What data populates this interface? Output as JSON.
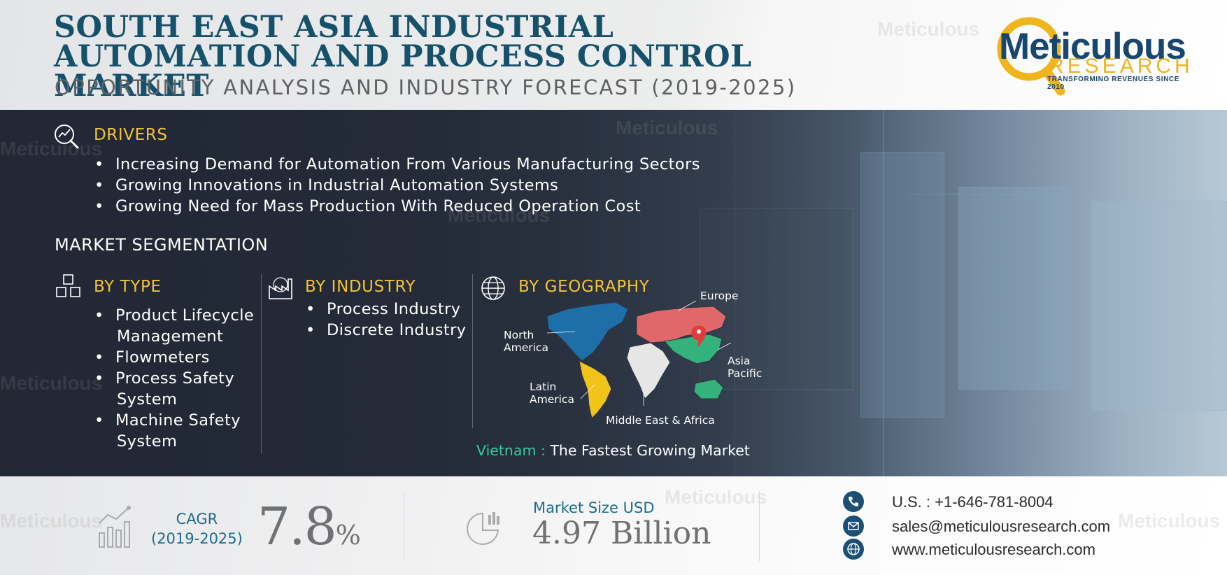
{
  "header": {
    "title": "SOUTH EAST ASIA INDUSTRIAL AUTOMATION AND PROCESS CONTROL MARKET",
    "subtitle": "OPPORTUNITY ANALYSIS AND INDUSTRY FORECAST (2019-2025)"
  },
  "logo": {
    "name": "Meticulous",
    "research": "RESEARCH",
    "tagline": "TRANSFORMING REVENUES SINCE 2010",
    "watermark": "Meticulous"
  },
  "drivers": {
    "heading": "DRIVERS",
    "icon": "magnifier-chart-icon",
    "items": [
      "Increasing Demand for Automation From Various Manufacturing Sectors",
      "Growing Innovations in Industrial Automation Systems",
      "Growing Need for Mass Production With Reduced Operation Cost"
    ]
  },
  "segmentation": {
    "title": "MARKET SEGMENTATION",
    "by_type": {
      "heading": "BY TYPE",
      "icon": "cubes-icon",
      "items": [
        [
          "Product Lifecycle",
          "Management"
        ],
        [
          "Flowmeters"
        ],
        [
          "Process Safety",
          "System"
        ],
        [
          "Machine Safety",
          "System"
        ]
      ]
    },
    "by_industry": {
      "heading": "BY INDUSTRY",
      "icon": "factory-icon",
      "items": [
        "Process Industry",
        "Discrete Industry"
      ]
    },
    "by_geography": {
      "heading": "BY GEOGRAPHY",
      "icon": "globe-icon",
      "regions": {
        "europe": "Europe",
        "north_america_1": "North",
        "north_america_2": "America",
        "asia_pacific_1": "Asia",
        "asia_pacific_2": "Pacific",
        "latin_america_1": "Latin",
        "latin_america_2": "America",
        "mea": "Middle East & Africa"
      },
      "colors": {
        "north_america": "#1e6ea8",
        "europe": "#e1686a",
        "asia_pacific": "#34b27c",
        "latin_america": "#f2c318",
        "mea": "#e6e6e6",
        "pin": "#e23b3b"
      },
      "fastest_country": "Vietnam :",
      "fastest_text": "The Fastest Growing Market"
    }
  },
  "footer": {
    "cagr_label": "CAGR",
    "cagr_period": "(2019-2025)",
    "cagr_value": "7.8",
    "cagr_unit": "%",
    "market_size_label": "Market Size USD",
    "market_size_value": "4.97 Billion",
    "phone": "U.S. : +1-646-781-8004",
    "email": "sales@meticulousresearch.com",
    "website": "www.meticulousresearch.com"
  }
}
